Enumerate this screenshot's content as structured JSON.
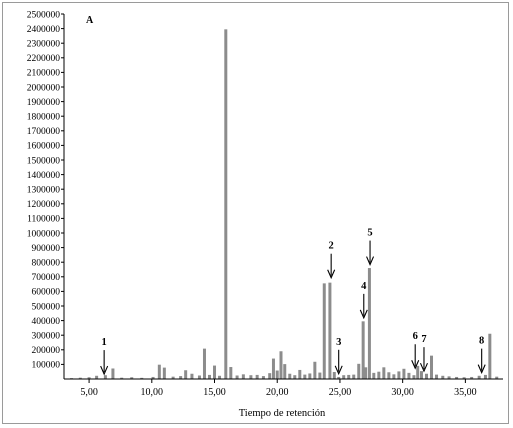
{
  "chart_data": {
    "type": "bar",
    "panel_label": "A",
    "title": "",
    "xlabel": "Tiempo de retención",
    "ylabel": "",
    "xlim": [
      3.0,
      38.0
    ],
    "ylim": [
      0,
      2500000
    ],
    "yticks": [
      100000,
      200000,
      300000,
      400000,
      500000,
      600000,
      700000,
      800000,
      900000,
      1000000,
      1100000,
      1200000,
      1300000,
      1400000,
      1500000,
      1600000,
      1700000,
      1800000,
      1900000,
      2000000,
      2100000,
      2200000,
      2300000,
      2400000,
      2500000
    ],
    "xticks": [
      5.0,
      10.0,
      15.0,
      20.0,
      25.0,
      30.0,
      35.0
    ],
    "xtick_labels": [
      "5,00",
      "10,00",
      "15,00",
      "20,00",
      "25,00",
      "30,00",
      "35,00"
    ],
    "grid": false,
    "bar_color": "#8c8c8c",
    "peaks": [
      {
        "x": 3.6,
        "y": 6000
      },
      {
        "x": 4.3,
        "y": 9000
      },
      {
        "x": 5.0,
        "y": 12000
      },
      {
        "x": 5.6,
        "y": 22000
      },
      {
        "x": 6.3,
        "y": 26000
      },
      {
        "x": 6.9,
        "y": 72000
      },
      {
        "x": 7.6,
        "y": 9000
      },
      {
        "x": 8.4,
        "y": 12000
      },
      {
        "x": 9.2,
        "y": 8000
      },
      {
        "x": 10.1,
        "y": 14000
      },
      {
        "x": 10.6,
        "y": 98000
      },
      {
        "x": 11.0,
        "y": 78000
      },
      {
        "x": 11.7,
        "y": 16000
      },
      {
        "x": 12.3,
        "y": 20000
      },
      {
        "x": 12.7,
        "y": 60000
      },
      {
        "x": 13.2,
        "y": 36000
      },
      {
        "x": 13.8,
        "y": 24000
      },
      {
        "x": 14.2,
        "y": 208000
      },
      {
        "x": 14.6,
        "y": 28000
      },
      {
        "x": 15.0,
        "y": 92000
      },
      {
        "x": 15.4,
        "y": 22000
      },
      {
        "x": 15.9,
        "y": 2395000
      },
      {
        "x": 16.3,
        "y": 82000
      },
      {
        "x": 16.8,
        "y": 24000
      },
      {
        "x": 17.3,
        "y": 32000
      },
      {
        "x": 17.9,
        "y": 26000
      },
      {
        "x": 18.4,
        "y": 28000
      },
      {
        "x": 18.9,
        "y": 20000
      },
      {
        "x": 19.4,
        "y": 40000
      },
      {
        "x": 19.7,
        "y": 140000
      },
      {
        "x": 20.0,
        "y": 58000
      },
      {
        "x": 20.3,
        "y": 190000
      },
      {
        "x": 20.6,
        "y": 102000
      },
      {
        "x": 21.0,
        "y": 36000
      },
      {
        "x": 21.4,
        "y": 26000
      },
      {
        "x": 21.8,
        "y": 62000
      },
      {
        "x": 22.2,
        "y": 30000
      },
      {
        "x": 22.6,
        "y": 38000
      },
      {
        "x": 23.0,
        "y": 118000
      },
      {
        "x": 23.4,
        "y": 44000
      },
      {
        "x": 23.75,
        "y": 655000
      },
      {
        "x": 24.2,
        "y": 660000
      },
      {
        "x": 24.55,
        "y": 48000
      },
      {
        "x": 24.9,
        "y": 14000
      },
      {
        "x": 25.3,
        "y": 26000
      },
      {
        "x": 25.7,
        "y": 28000
      },
      {
        "x": 26.1,
        "y": 30000
      },
      {
        "x": 26.5,
        "y": 104000
      },
      {
        "x": 26.85,
        "y": 395000
      },
      {
        "x": 27.05,
        "y": 80000
      },
      {
        "x": 27.35,
        "y": 760000
      },
      {
        "x": 27.7,
        "y": 42000
      },
      {
        "x": 28.1,
        "y": 50000
      },
      {
        "x": 28.5,
        "y": 80000
      },
      {
        "x": 28.9,
        "y": 46000
      },
      {
        "x": 29.3,
        "y": 32000
      },
      {
        "x": 29.7,
        "y": 52000
      },
      {
        "x": 30.1,
        "y": 70000
      },
      {
        "x": 30.5,
        "y": 42000
      },
      {
        "x": 30.9,
        "y": 26000
      },
      {
        "x": 31.2,
        "y": 90000
      },
      {
        "x": 31.5,
        "y": 54000
      },
      {
        "x": 31.9,
        "y": 36000
      },
      {
        "x": 32.3,
        "y": 160000
      },
      {
        "x": 32.7,
        "y": 30000
      },
      {
        "x": 33.2,
        "y": 22000
      },
      {
        "x": 33.7,
        "y": 18000
      },
      {
        "x": 34.3,
        "y": 14000
      },
      {
        "x": 34.9,
        "y": 12000
      },
      {
        "x": 35.5,
        "y": 14000
      },
      {
        "x": 36.1,
        "y": 22000
      },
      {
        "x": 36.6,
        "y": 28000
      },
      {
        "x": 36.95,
        "y": 310000
      },
      {
        "x": 37.5,
        "y": 16000
      }
    ],
    "annotations": [
      {
        "label": "1",
        "x": 6.2,
        "y": 20000
      },
      {
        "label": "2",
        "x": 24.3,
        "y": 680000
      },
      {
        "label": "3",
        "x": 24.9,
        "y": 22000
      },
      {
        "label": "4",
        "x": 26.9,
        "y": 405000
      },
      {
        "label": "5",
        "x": 27.4,
        "y": 770000
      },
      {
        "label": "6",
        "x": 31.0,
        "y": 60000
      },
      {
        "label": "7",
        "x": 31.7,
        "y": 40000
      },
      {
        "label": "8",
        "x": 36.3,
        "y": 30000
      }
    ]
  }
}
